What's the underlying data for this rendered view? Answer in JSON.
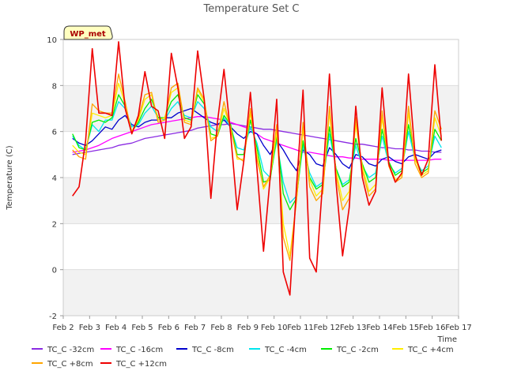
{
  "chart_data": {
    "type": "line",
    "title": "Temperature Set C",
    "xlabel": "Time",
    "ylabel": "Temperature (C)",
    "annotation": "WP_met",
    "xlim": [
      2,
      17
    ],
    "ylim": [
      -2,
      10
    ],
    "x_ticks": [
      2,
      3,
      4,
      5,
      6,
      7,
      8,
      9,
      10,
      11,
      12,
      13,
      14,
      15,
      16,
      17
    ],
    "x_tick_labels": [
      "Feb 2",
      "Feb 3",
      "Feb 4",
      "Feb 5",
      "Feb 6",
      "Feb 7",
      "Feb 8",
      "Feb 9",
      "Feb 10",
      "Feb 11",
      "Feb 12",
      "Feb 13",
      "Feb 14",
      "Feb 15",
      "Feb 16",
      "Feb 17"
    ],
    "y_ticks": [
      -2,
      0,
      2,
      4,
      6,
      8,
      10
    ],
    "y_tick_labels": [
      "-2",
      "0",
      "2",
      "4",
      "6",
      "8",
      "10"
    ],
    "grid": true,
    "legend_position": "bottom",
    "x": [
      2.35,
      2.6,
      2.85,
      3.1,
      3.35,
      3.6,
      3.85,
      4.1,
      4.35,
      4.6,
      4.85,
      5.1,
      5.35,
      5.6,
      5.85,
      6.1,
      6.35,
      6.6,
      6.85,
      7.1,
      7.35,
      7.6,
      7.85,
      8.1,
      8.35,
      8.6,
      8.85,
      9.1,
      9.35,
      9.6,
      9.85,
      10.1,
      10.35,
      10.6,
      10.85,
      11.1,
      11.35,
      11.6,
      11.85,
      12.1,
      12.35,
      12.6,
      12.85,
      13.1,
      13.35,
      13.6,
      13.85,
      14.1,
      14.35,
      14.6,
      14.85,
      15.1,
      15.35,
      15.6,
      15.85,
      16.1,
      16.35
    ],
    "series": [
      {
        "name": "TC_C -32cm",
        "color": "#8a2be2",
        "values": [
          5.0,
          5.05,
          5.1,
          5.15,
          5.2,
          5.25,
          5.3,
          5.4,
          5.45,
          5.5,
          5.6,
          5.7,
          5.75,
          5.8,
          5.85,
          5.9,
          5.95,
          6.0,
          6.05,
          6.15,
          6.2,
          6.25,
          6.3,
          6.3,
          6.35,
          6.3,
          6.25,
          6.2,
          6.15,
          6.1,
          6.1,
          6.05,
          6.0,
          5.95,
          5.9,
          5.85,
          5.8,
          5.75,
          5.7,
          5.65,
          5.6,
          5.55,
          5.5,
          5.45,
          5.45,
          5.4,
          5.35,
          5.3,
          5.3,
          5.25,
          5.25,
          5.2,
          5.2,
          5.15,
          5.15,
          5.1,
          5.1
        ]
      },
      {
        "name": "TC_C -16cm",
        "color": "#ff00ff",
        "values": [
          5.1,
          5.15,
          5.2,
          5.3,
          5.4,
          5.55,
          5.7,
          5.8,
          5.9,
          6.0,
          6.1,
          6.2,
          6.3,
          6.35,
          6.4,
          6.45,
          6.5,
          6.55,
          6.6,
          6.65,
          6.65,
          6.6,
          6.55,
          6.5,
          6.4,
          6.3,
          6.2,
          6.1,
          5.9,
          5.7,
          5.6,
          5.5,
          5.4,
          5.3,
          5.2,
          5.1,
          5.1,
          5.05,
          5.0,
          4.95,
          4.9,
          4.9,
          4.85,
          4.85,
          4.8,
          4.8,
          4.8,
          4.8,
          4.75,
          4.75,
          4.75,
          4.75,
          4.75,
          4.75,
          4.75,
          4.8,
          4.8
        ]
      },
      {
        "name": "TC_C -8cm",
        "color": "#0000cd",
        "values": [
          5.7,
          5.5,
          5.4,
          5.6,
          5.9,
          6.2,
          6.1,
          6.5,
          6.7,
          6.3,
          6.2,
          6.4,
          6.5,
          6.5,
          6.6,
          6.6,
          6.8,
          6.9,
          7.0,
          6.8,
          6.6,
          6.4,
          6.3,
          6.5,
          6.2,
          5.9,
          5.7,
          6.0,
          5.9,
          5.4,
          5.0,
          5.6,
          5.2,
          4.7,
          4.3,
          5.2,
          5.0,
          4.6,
          4.5,
          5.3,
          5.0,
          4.6,
          4.4,
          5.0,
          4.9,
          4.6,
          4.5,
          4.8,
          4.9,
          4.7,
          4.6,
          4.9,
          5.0,
          4.9,
          4.8,
          5.1,
          5.2
        ]
      },
      {
        "name": "TC_C -4cm",
        "color": "#00e5ee",
        "values": [
          5.8,
          5.4,
          5.2,
          6.3,
          6.0,
          6.5,
          6.5,
          7.3,
          7.0,
          6.2,
          6.3,
          6.8,
          7.1,
          6.6,
          6.5,
          7.0,
          7.3,
          6.7,
          6.6,
          7.3,
          7.0,
          6.2,
          6.0,
          6.6,
          6.2,
          5.3,
          5.2,
          6.2,
          5.5,
          4.3,
          4.0,
          5.6,
          3.8,
          2.9,
          3.2,
          5.4,
          4.2,
          3.6,
          3.8,
          5.9,
          4.4,
          3.7,
          3.9,
          5.4,
          4.5,
          4.0,
          4.2,
          5.8,
          4.6,
          4.2,
          4.4,
          6.0,
          4.8,
          4.3,
          4.5,
          5.8,
          5.3
        ]
      },
      {
        "name": "TC_C -2cm",
        "color": "#00ee00",
        "values": [
          5.9,
          5.3,
          5.2,
          6.4,
          6.5,
          6.4,
          6.6,
          7.6,
          7.1,
          6.0,
          6.4,
          7.0,
          7.4,
          6.6,
          6.6,
          7.3,
          7.6,
          6.6,
          6.5,
          7.6,
          7.2,
          5.9,
          5.8,
          6.7,
          6.3,
          5.0,
          5.0,
          6.5,
          5.3,
          3.8,
          3.9,
          5.8,
          3.3,
          2.6,
          3.1,
          5.6,
          4.0,
          3.5,
          3.7,
          6.2,
          4.4,
          3.6,
          3.8,
          5.7,
          4.6,
          3.8,
          4.0,
          6.1,
          4.7,
          4.1,
          4.3,
          6.3,
          4.9,
          4.2,
          4.4,
          6.1,
          5.6
        ]
      },
      {
        "name": "TC_C +4cm",
        "color": "#ffee00",
        "values": [
          5.4,
          5.1,
          5.0,
          6.8,
          6.7,
          6.6,
          6.7,
          8.1,
          7.2,
          6.0,
          6.5,
          7.4,
          7.6,
          6.5,
          6.6,
          7.7,
          7.9,
          6.5,
          6.4,
          7.8,
          7.3,
          5.7,
          5.8,
          7.0,
          6.2,
          4.8,
          4.8,
          6.8,
          5.0,
          3.5,
          4.0,
          6.0,
          2.0,
          0.6,
          3.0,
          6.1,
          3.9,
          3.2,
          3.5,
          6.8,
          4.3,
          3.0,
          3.4,
          6.3,
          4.5,
          3.4,
          3.7,
          6.6,
          4.6,
          3.9,
          4.1,
          6.8,
          4.8,
          4.1,
          4.3,
          6.6,
          5.8
        ]
      },
      {
        "name": "TC_C +8cm",
        "color": "#ffa500",
        "values": [
          5.2,
          4.9,
          4.8,
          7.2,
          6.9,
          6.8,
          6.8,
          8.5,
          7.3,
          5.9,
          6.6,
          7.6,
          7.7,
          6.4,
          6.5,
          7.9,
          8.1,
          6.4,
          6.3,
          7.9,
          7.4,
          5.6,
          5.8,
          7.3,
          6.1,
          4.9,
          4.7,
          7.0,
          4.8,
          3.6,
          4.1,
          6.3,
          1.4,
          0.4,
          3.0,
          6.4,
          3.6,
          3.0,
          3.3,
          7.1,
          4.1,
          2.6,
          3.1,
          6.6,
          4.3,
          3.2,
          3.5,
          6.9,
          4.5,
          3.8,
          4.0,
          7.1,
          4.6,
          4.0,
          4.2,
          6.9,
          6.1
        ]
      },
      {
        "name": "TC_C +12cm",
        "color": "#ee0000",
        "values": [
          3.2,
          3.6,
          5.6,
          9.6,
          6.8,
          6.8,
          6.7,
          9.9,
          7.0,
          5.9,
          6.7,
          8.6,
          7.1,
          6.9,
          5.7,
          9.4,
          7.9,
          5.7,
          6.2,
          9.5,
          7.4,
          3.1,
          6.4,
          8.7,
          5.9,
          2.6,
          4.7,
          7.7,
          4.4,
          0.8,
          4.0,
          7.4,
          -0.1,
          -1.1,
          3.6,
          7.8,
          0.5,
          -0.1,
          3.9,
          8.5,
          3.8,
          0.6,
          2.7,
          7.1,
          4.0,
          2.8,
          3.4,
          7.9,
          4.6,
          3.8,
          4.2,
          8.5,
          5.0,
          4.1,
          4.8,
          8.9,
          5.6
        ]
      }
    ]
  }
}
